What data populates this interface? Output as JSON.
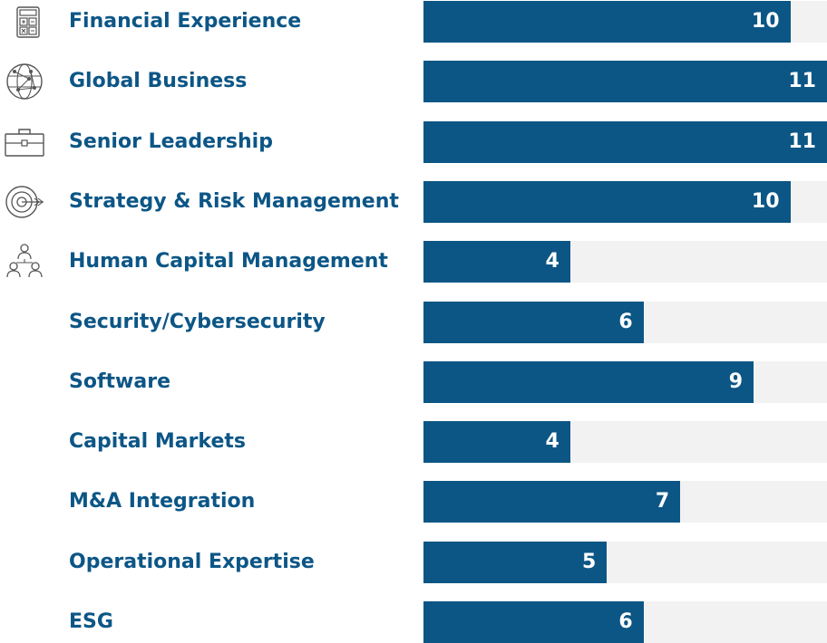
{
  "chart_data": {
    "type": "bar",
    "orientation": "horizontal",
    "categories": [
      "Financial Experience",
      "Global Business",
      "Senior Leadership",
      "Strategy & Risk Management",
      "Human Capital Management",
      "Security/Cybersecurity",
      "Software",
      "Capital Markets",
      "M&A Integration",
      "Operational Expertise",
      "ESG"
    ],
    "values": [
      10,
      11,
      11,
      10,
      4,
      6,
      9,
      4,
      7,
      5,
      6
    ],
    "xlim": [
      0,
      11
    ],
    "grid": false,
    "legend": "none",
    "icons": [
      "calculator-icon",
      "globe-network-icon",
      "briefcase-icon",
      "target-icon",
      "people-hierarchy-icon",
      null,
      null,
      null,
      null,
      null,
      null
    ],
    "colors": {
      "bar": "#0c5686",
      "track": "#f2f2f2",
      "label": "#0c5686",
      "value_text": "#ffffff",
      "icon": "#555555"
    }
  }
}
